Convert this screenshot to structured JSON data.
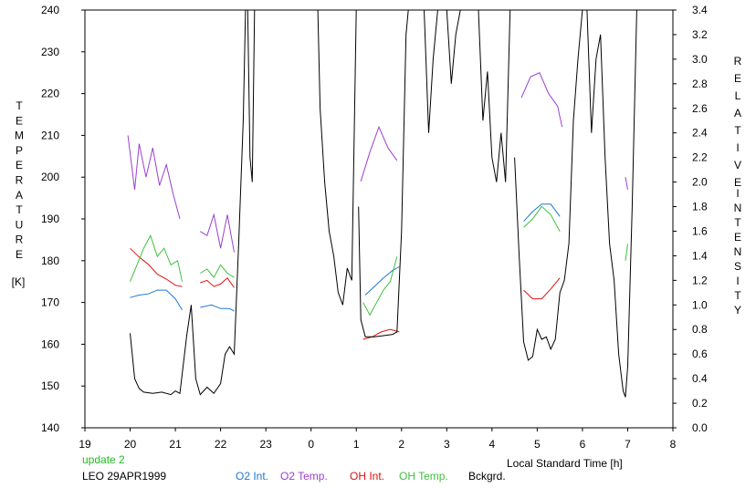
{
  "chart_data": {
    "type": "line",
    "title": "",
    "left_axis": {
      "label_letters": [
        "T",
        "E",
        "M",
        "P",
        "E",
        "R",
        "A",
        "T",
        "U",
        "R",
        "E"
      ],
      "unit": "[K]",
      "range": [
        140,
        240
      ],
      "ticks": [
        "140",
        "150",
        "160",
        "170",
        "180",
        "190",
        "200",
        "210",
        "220",
        "230",
        "240"
      ]
    },
    "right_axis": {
      "label_word1": [
        "R",
        "E",
        "L",
        "A",
        "T",
        "I",
        "V",
        "E"
      ],
      "label_word2": [
        "I",
        "N",
        "T",
        "E",
        "N",
        "S",
        "I",
        "T",
        "Y"
      ],
      "range": [
        0,
        3.4
      ],
      "ticks": [
        "0.0",
        "0.2",
        "0.4",
        "0.6",
        "0.8",
        "1.0",
        "1.2",
        "1.4",
        "1.6",
        "1.8",
        "2.0",
        "2.2",
        "2.4",
        "2.6",
        "2.8",
        "3.0",
        "3.2",
        "3.4"
      ]
    },
    "x_axis": {
      "label": "Local Standard Time [h]",
      "range": [
        19,
        32
      ],
      "ticks": [
        "19",
        "20",
        "21",
        "22",
        "23",
        "0",
        "1",
        "2",
        "3",
        "4",
        "5",
        "6",
        "7",
        "8"
      ]
    },
    "grid": false,
    "legend_position": "bottom",
    "series": [
      {
        "name": "O2 Int.",
        "color": "#1e78d2",
        "axis": "right",
        "segments": [
          [
            [
              20.0,
              1.06
            ],
            [
              20.2,
              1.08
            ],
            [
              20.4,
              1.09
            ],
            [
              20.6,
              1.12
            ],
            [
              20.8,
              1.12
            ],
            [
              21.0,
              1.05
            ],
            [
              21.15,
              0.96
            ]
          ],
          [
            [
              21.55,
              0.98
            ],
            [
              21.8,
              1.0
            ],
            [
              22.0,
              0.97
            ],
            [
              22.2,
              0.97
            ],
            [
              22.3,
              0.95
            ]
          ],
          [
            [
              25.2,
              1.08
            ],
            [
              25.4,
              1.15
            ],
            [
              25.6,
              1.22
            ],
            [
              25.8,
              1.28
            ],
            [
              25.95,
              1.31
            ]
          ],
          [
            [
              28.7,
              1.68
            ],
            [
              28.9,
              1.76
            ],
            [
              29.1,
              1.82
            ],
            [
              29.3,
              1.82
            ],
            [
              29.5,
              1.72
            ]
          ]
        ]
      },
      {
        "name": "O2 Temp.",
        "color": "#9a40d0",
        "axis": "left",
        "segments": [
          [
            [
              19.95,
              210
            ],
            [
              20.1,
              197
            ],
            [
              20.2,
              208
            ],
            [
              20.35,
              200
            ],
            [
              20.5,
              207
            ],
            [
              20.65,
              198
            ],
            [
              20.8,
              203
            ],
            [
              20.95,
              196
            ],
            [
              21.1,
              190
            ]
          ],
          [
            [
              21.55,
              187
            ],
            [
              21.7,
              186
            ],
            [
              21.85,
              191
            ],
            [
              22.0,
              183
            ],
            [
              22.15,
              191
            ],
            [
              22.3,
              182
            ]
          ],
          [
            [
              25.1,
              199
            ],
            [
              25.3,
              206
            ],
            [
              25.5,
              212
            ],
            [
              25.7,
              207
            ],
            [
              25.9,
              204
            ]
          ],
          [
            [
              28.65,
              219
            ],
            [
              28.85,
              224
            ],
            [
              29.05,
              225
            ],
            [
              29.25,
              220
            ],
            [
              29.45,
              217
            ],
            [
              29.55,
              212
            ]
          ],
          [
            [
              30.95,
              200
            ],
            [
              31.0,
              197
            ]
          ]
        ]
      },
      {
        "name": "OH Int.",
        "color": "#e01010",
        "axis": "right",
        "segments": [
          [
            [
              20.0,
              1.46
            ],
            [
              20.2,
              1.39
            ],
            [
              20.4,
              1.33
            ],
            [
              20.6,
              1.25
            ],
            [
              20.8,
              1.21
            ],
            [
              21.0,
              1.16
            ],
            [
              21.15,
              1.15
            ]
          ],
          [
            [
              21.55,
              1.18
            ],
            [
              21.7,
              1.2
            ],
            [
              21.85,
              1.15
            ],
            [
              22.0,
              1.17
            ],
            [
              22.15,
              1.22
            ],
            [
              22.3,
              1.14
            ]
          ],
          [
            [
              25.15,
              0.72
            ],
            [
              25.35,
              0.74
            ],
            [
              25.55,
              0.78
            ],
            [
              25.75,
              0.8
            ],
            [
              25.95,
              0.78
            ]
          ],
          [
            [
              28.7,
              1.12
            ],
            [
              28.9,
              1.05
            ],
            [
              29.1,
              1.05
            ],
            [
              29.3,
              1.13
            ],
            [
              29.5,
              1.22
            ]
          ]
        ]
      },
      {
        "name": "OH Temp.",
        "color": "#40c040",
        "axis": "left",
        "segments": [
          [
            [
              20.0,
              175
            ],
            [
              20.15,
              179
            ],
            [
              20.3,
              183
            ],
            [
              20.45,
              186
            ],
            [
              20.6,
              181
            ],
            [
              20.75,
              183
            ],
            [
              20.9,
              179
            ],
            [
              21.05,
              180
            ],
            [
              21.15,
              175
            ]
          ],
          [
            [
              21.55,
              177
            ],
            [
              21.7,
              178
            ],
            [
              21.85,
              176
            ],
            [
              22.0,
              179
            ],
            [
              22.15,
              177
            ],
            [
              22.3,
              176
            ]
          ],
          [
            [
              25.15,
              170
            ],
            [
              25.3,
              167
            ],
            [
              25.45,
              170
            ],
            [
              25.6,
              173
            ],
            [
              25.75,
              175
            ],
            [
              25.9,
              181
            ]
          ],
          [
            [
              28.7,
              188
            ],
            [
              28.9,
              190
            ],
            [
              29.1,
              193
            ],
            [
              29.3,
              191
            ],
            [
              29.5,
              187
            ]
          ],
          [
            [
              30.95,
              180
            ],
            [
              31.0,
              184
            ]
          ]
        ]
      },
      {
        "name": "Bckgrd.",
        "color": "#000000",
        "axis": "right",
        "segments": [
          [
            [
              20.0,
              0.77
            ],
            [
              20.1,
              0.4
            ],
            [
              20.2,
              0.32
            ],
            [
              20.3,
              0.29
            ],
            [
              20.5,
              0.28
            ],
            [
              20.7,
              0.29
            ],
            [
              20.9,
              0.27
            ],
            [
              21.0,
              0.3
            ],
            [
              21.1,
              0.28
            ],
            [
              21.25,
              0.75
            ],
            [
              21.35,
              1.0
            ],
            [
              21.45,
              0.4
            ],
            [
              21.55,
              0.27
            ],
            [
              21.7,
              0.33
            ],
            [
              21.85,
              0.28
            ],
            [
              22.0,
              0.36
            ],
            [
              22.1,
              0.6
            ],
            [
              22.2,
              0.66
            ],
            [
              22.3,
              0.6
            ],
            [
              22.4,
              1.5
            ],
            [
              22.5,
              2.5
            ],
            [
              22.55,
              3.4
            ]
          ],
          [
            [
              22.6,
              3.4
            ],
            [
              22.65,
              2.2
            ],
            [
              22.7,
              2.0
            ],
            [
              22.75,
              3.4
            ]
          ],
          [
            [
              24.15,
              3.4
            ],
            [
              24.2,
              2.6
            ],
            [
              24.3,
              2.0
            ],
            [
              24.4,
              1.6
            ],
            [
              24.5,
              1.4
            ],
            [
              24.6,
              1.1
            ],
            [
              24.7,
              1.0
            ],
            [
              24.8,
              1.3
            ],
            [
              24.9,
              1.2
            ],
            [
              25.0,
              3.4
            ]
          ],
          [
            [
              25.05,
              1.8
            ],
            [
              25.1,
              0.88
            ],
            [
              25.2,
              0.74
            ],
            [
              25.4,
              0.74
            ],
            [
              25.6,
              0.75
            ],
            [
              25.8,
              0.76
            ],
            [
              25.9,
              0.78
            ],
            [
              26.0,
              1.6
            ],
            [
              26.1,
              3.2
            ],
            [
              26.15,
              3.4
            ]
          ],
          [
            [
              26.5,
              3.4
            ],
            [
              26.6,
              2.4
            ],
            [
              26.7,
              3.0
            ],
            [
              26.8,
              3.4
            ]
          ],
          [
            [
              27.0,
              3.4
            ],
            [
              27.1,
              2.8
            ],
            [
              27.2,
              3.2
            ],
            [
              27.3,
              3.4
            ]
          ],
          [
            [
              27.7,
              3.4
            ],
            [
              27.8,
              2.5
            ],
            [
              27.9,
              2.9
            ],
            [
              28.0,
              2.2
            ],
            [
              28.1,
              2.0
            ],
            [
              28.2,
              2.4
            ],
            [
              28.3,
              2.0
            ],
            [
              28.4,
              3.4
            ]
          ],
          [
            [
              28.5,
              2.2
            ],
            [
              28.6,
              1.4
            ],
            [
              28.7,
              0.7
            ],
            [
              28.8,
              0.55
            ],
            [
              28.9,
              0.58
            ],
            [
              29.0,
              0.8
            ],
            [
              29.1,
              0.72
            ],
            [
              29.2,
              0.74
            ],
            [
              29.3,
              0.64
            ],
            [
              29.4,
              0.72
            ],
            [
              29.5,
              1.1
            ],
            [
              29.6,
              1.2
            ],
            [
              29.7,
              1.5
            ],
            [
              29.8,
              2.5
            ],
            [
              29.9,
              3.0
            ],
            [
              30.0,
              3.4
            ]
          ],
          [
            [
              30.1,
              3.4
            ],
            [
              30.2,
              2.4
            ],
            [
              30.3,
              3.0
            ],
            [
              30.4,
              3.2
            ],
            [
              30.5,
              2.2
            ],
            [
              30.6,
              1.5
            ],
            [
              30.7,
              1.2
            ],
            [
              30.8,
              0.6
            ],
            [
              30.9,
              0.3
            ],
            [
              30.95,
              0.25
            ],
            [
              31.0,
              0.5
            ],
            [
              31.1,
              1.8
            ],
            [
              31.2,
              3.4
            ]
          ]
        ]
      }
    ]
  },
  "footer": {
    "update": "update 2",
    "site_date": "LEO 29APR1999",
    "update_color": "#22bb22"
  }
}
